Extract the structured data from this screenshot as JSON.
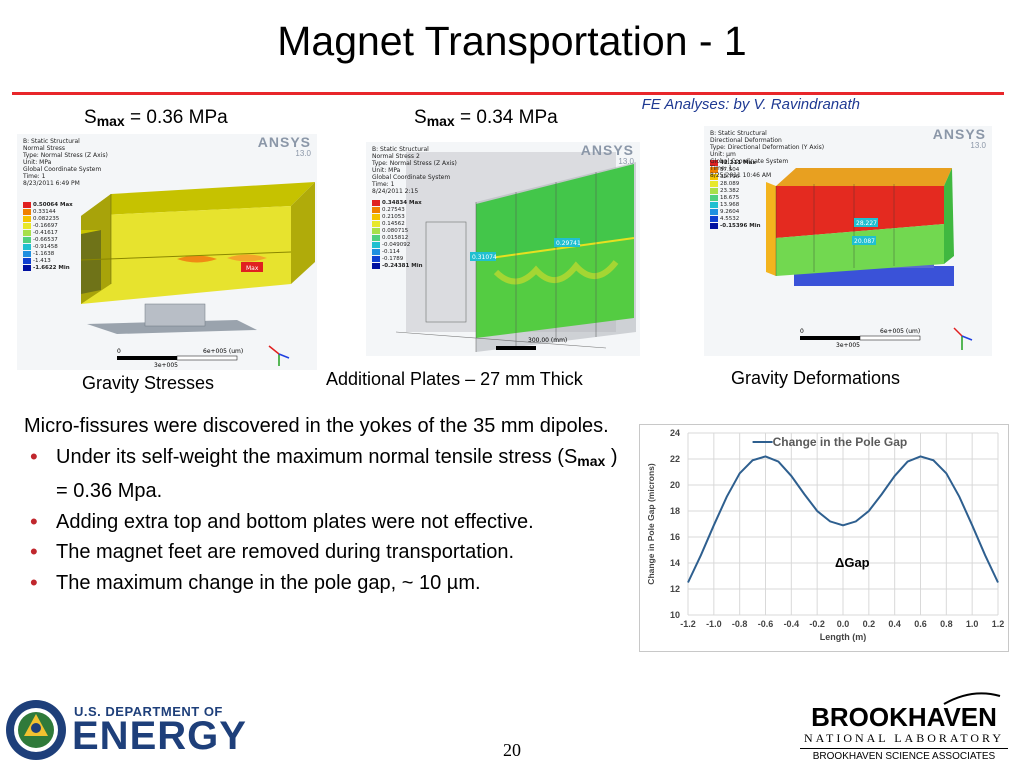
{
  "slide": {
    "title": "Magnet Transportation - 1",
    "credit": "FE Analyses: by V. Ravindranath",
    "page_number": "20"
  },
  "colors": {
    "rule": "#e8262a",
    "credit": "#1f3a93",
    "bullet": "#c0272d",
    "doe_blue": "#1e3f7a"
  },
  "stress_labels": [
    {
      "s": "S",
      "sub": "max",
      "value": " = 0.36 MPa"
    },
    {
      "s": "S",
      "sub": "max",
      "value": " = 0.34 MPa"
    }
  ],
  "panels": [
    {
      "ansys_logo": "ANSYS",
      "ansys_version": "13.0",
      "info_lines": [
        "B: Static Structural",
        "Normal Stress",
        "Type: Normal Stress (Z Axis)",
        "Unit: MPa",
        "Global Coordinate System",
        "Time: 1",
        "8/23/2011 6:49 PM"
      ],
      "legend": [
        "0.50064 Max",
        "0.33144",
        "0.082235",
        "-0.16697",
        "-0.41617",
        "-0.66537",
        "-0.91458",
        "-1.1638",
        "-1.413",
        "-1.6622 Min"
      ],
      "scale_start": "0",
      "scale_end": "6e+005 (um)",
      "scale_mid": "3e+005",
      "max_tag": "Max",
      "caption": "Gravity Stresses"
    },
    {
      "ansys_logo": "ANSYS",
      "ansys_version": "13.0",
      "info_lines": [
        "B: Static Structural",
        "Normal Stress 2",
        "Type: Normal Stress (Z Axis)",
        "Unit: MPa",
        "Global Coordinate System",
        "Time: 1",
        "8/24/2011 2:15"
      ],
      "legend": [
        "0.34834 Max",
        "0.27543",
        "0.21053",
        "0.14562",
        "0.080715",
        "0.015812",
        "-0.049092",
        "-0.114",
        "-0.1789",
        "-0.24381 Min"
      ],
      "probe_a": "0.31074",
      "probe_b": "0.29741",
      "scale_end": "300.00 (mm)",
      "caption": "Additional Plates – 27 mm Thick"
    },
    {
      "ansys_logo": "ANSYS",
      "ansys_version": "13.0",
      "info_lines": [
        "B: Static Structural",
        "Directional Deformation",
        "Type: Directional Deformation (Y Axis)",
        "Unit: µm",
        "Global Coordinate System",
        "Time: 1",
        "8/25/2011 10:46 AM"
      ],
      "legend": [
        "42.211 Max",
        "37.504",
        "32.796",
        "28.089",
        "23.382",
        "18.675",
        "13.968",
        "9.2604",
        "4.5532",
        "-0.15396 Min"
      ],
      "probe_a": "28.227",
      "probe_b": "20.087",
      "scale_start": "0",
      "scale_end": "6e+005 (um)",
      "scale_mid": "3e+005",
      "caption": "Gravity Deformations"
    }
  ],
  "body": {
    "intro": "Micro-fissures were discovered in the yokes of the 35 mm dipoles.",
    "bullet1_pre": "Under its self-weight the maximum normal tensile stress (S",
    "bullet1_sub": "max",
    "bullet1_post": " ) = 0.36 Mpa.",
    "bullet2": "Adding extra top and bottom plates were not effective.",
    "bullet3": "The magnet feet are removed during transportation.",
    "bullet4": "The maximum change in the pole gap, ~ 10 µm."
  },
  "chart_data": {
    "type": "line",
    "title": "",
    "series": [
      {
        "name": "Change in the Pole Gap",
        "x": [
          -1.2,
          -1.1,
          -1.0,
          -0.9,
          -0.8,
          -0.7,
          -0.6,
          -0.5,
          -0.4,
          -0.3,
          -0.2,
          -0.1,
          0.0,
          0.1,
          0.2,
          0.3,
          0.4,
          0.5,
          0.6,
          0.7,
          0.8,
          0.9,
          1.0,
          1.1,
          1.2
        ],
        "y": [
          12.5,
          14.6,
          16.9,
          19.1,
          20.9,
          21.9,
          22.2,
          21.8,
          20.7,
          19.3,
          18.0,
          17.2,
          16.9,
          17.2,
          18.0,
          19.3,
          20.7,
          21.8,
          22.2,
          21.9,
          20.9,
          19.1,
          16.9,
          14.6,
          12.5
        ]
      }
    ],
    "xlabel": "Length (m)",
    "ylabel": "Change in Pole Gap (microns)",
    "xlim": [
      -1.2,
      1.2
    ],
    "ylim": [
      10,
      24
    ],
    "xticks": [
      "-1.2",
      "-1.0",
      "-0.8",
      "-0.6",
      "-0.4",
      "-0.2",
      "0.0",
      "0.2",
      "0.4",
      "0.6",
      "0.8",
      "1.0",
      "1.2"
    ],
    "yticks": [
      "10",
      "12",
      "14",
      "16",
      "18",
      "20",
      "22",
      "24"
    ],
    "grid": true,
    "legend": "top-center",
    "annotation": "ΔGap",
    "line_color": "#2e5f8f"
  },
  "footer": {
    "doe_line1": "U.S. DEPARTMENT OF",
    "doe_line2": "ENERGY",
    "bnl_line1": "BROOKHAVEN",
    "bnl_line2": "NATIONAL LABORATORY",
    "bnl_line3": "BROOKHAVEN SCIENCE ASSOCIATES"
  }
}
